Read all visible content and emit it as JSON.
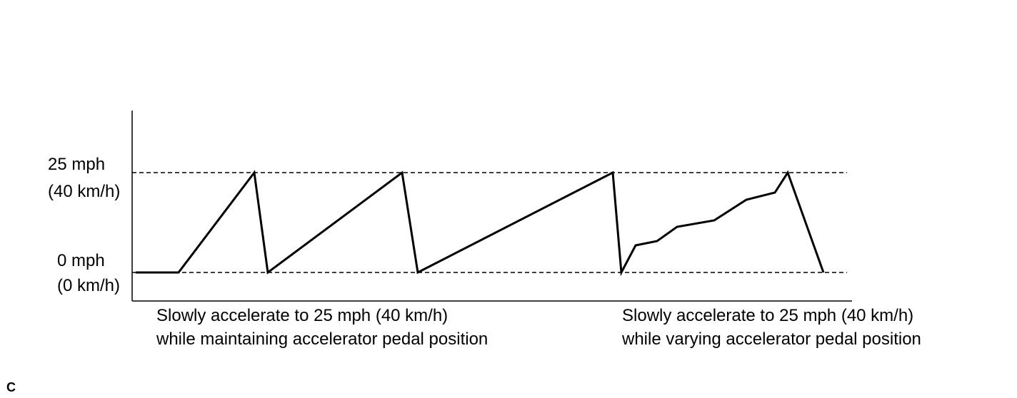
{
  "y_labels": [
    {
      "line1": "25 mph",
      "line2": "(40 km/h)"
    },
    {
      "line1": "0 mph",
      "line2": "(0 km/h)"
    }
  ],
  "captions": [
    {
      "line1": "Slowly accelerate to 25 mph (40 km/h)",
      "line2": "while maintaining accelerator pedal position"
    },
    {
      "line1": "Slowly accelerate to 25 mph (40 km/h)",
      "line2": "while varying accelerator pedal position"
    }
  ],
  "figure_code": "C"
}
